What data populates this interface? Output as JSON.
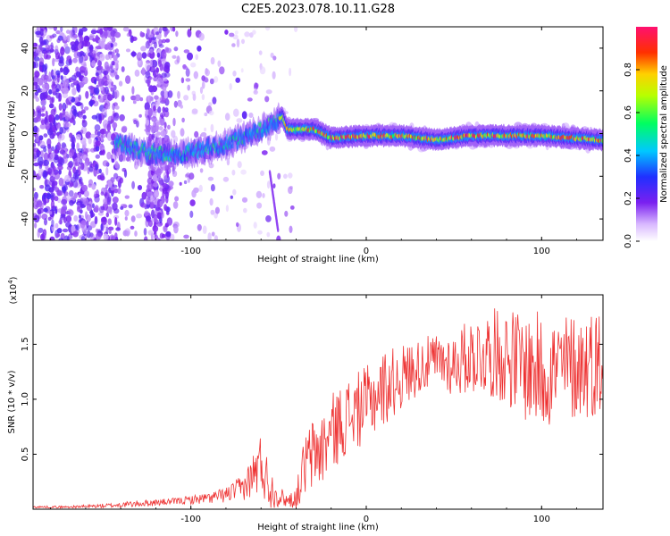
{
  "title": "C2E5.2023.078.10.11.G28",
  "chart_data": [
    {
      "type": "heatmap",
      "xlabel": "Height of straight line (km)",
      "ylabel": "Frequency (Hz)",
      "xlim": [
        -190,
        135
      ],
      "ylim": [
        -50,
        50
      ],
      "xticks": [
        -100,
        0,
        100
      ],
      "yticks": [
        -40,
        -20,
        0,
        20,
        40
      ],
      "colorbar": {
        "label": "Normalized spectral amplitude",
        "range": [
          0,
          1
        ],
        "ticks": [
          0.0,
          0.2,
          0.4,
          0.6,
          0.8
        ]
      },
      "ridge": [
        {
          "x": -140,
          "freq": -5
        },
        {
          "x": -125,
          "freq": -9
        },
        {
          "x": -110,
          "freq": -10
        },
        {
          "x": -95,
          "freq": -8
        },
        {
          "x": -80,
          "freq": -5
        },
        {
          "x": -65,
          "freq": 0
        },
        {
          "x": -55,
          "freq": 4
        },
        {
          "x": -48,
          "freq": 8
        },
        {
          "x": -45,
          "freq": 2
        },
        {
          "x": -30,
          "freq": 2
        },
        {
          "x": -20,
          "freq": -2
        },
        {
          "x": 0,
          "freq": -1
        },
        {
          "x": 20,
          "freq": -1
        },
        {
          "x": 40,
          "freq": -3
        },
        {
          "x": 60,
          "freq": -1
        },
        {
          "x": 100,
          "freq": -1
        },
        {
          "x": 135,
          "freq": -3
        }
      ]
    },
    {
      "type": "line",
      "xlabel": "Height of straight line (km)",
      "ylabel": "SNR (10 * v/v)",
      "y_scale_label": "(x10",
      "y_scale_exp": "4",
      "xlim": [
        -190,
        135
      ],
      "ylim": [
        0,
        1.95
      ],
      "xticks": [
        -100,
        0,
        100
      ],
      "yticks": [
        0.5,
        1.0,
        1.5
      ],
      "ytick_labels": [
        "0.5",
        "1.0",
        "1.5"
      ],
      "color": "#ee3333",
      "series": [
        {
          "x": [
            -190,
            -170,
            -150,
            -130,
            -110,
            -90,
            -80,
            -70,
            -65,
            -60,
            -55,
            -50,
            -45,
            -40,
            -35,
            -30,
            -25,
            -20,
            -10,
            0,
            10,
            20,
            30,
            40,
            50,
            60,
            70,
            80,
            90,
            100,
            110,
            120,
            135
          ],
          "y": [
            0.02,
            0.02,
            0.03,
            0.05,
            0.07,
            0.1,
            0.13,
            0.2,
            0.3,
            0.42,
            0.2,
            0.12,
            0.08,
            0.1,
            0.4,
            0.5,
            0.55,
            0.7,
            0.85,
            0.95,
            1.1,
            1.2,
            1.3,
            1.35,
            1.32,
            1.4,
            1.42,
            1.4,
            1.3,
            1.25,
            1.28,
            1.3,
            1.35
          ],
          "spread": [
            0.01,
            0.01,
            0.02,
            0.03,
            0.03,
            0.05,
            0.07,
            0.12,
            0.2,
            0.3,
            0.2,
            0.1,
            0.06,
            0.1,
            0.3,
            0.35,
            0.35,
            0.35,
            0.35,
            0.35,
            0.35,
            0.3,
            0.25,
            0.25,
            0.3,
            0.35,
            0.4,
            0.45,
            0.5,
            0.55,
            0.5,
            0.5,
            0.5
          ]
        }
      ]
    }
  ]
}
